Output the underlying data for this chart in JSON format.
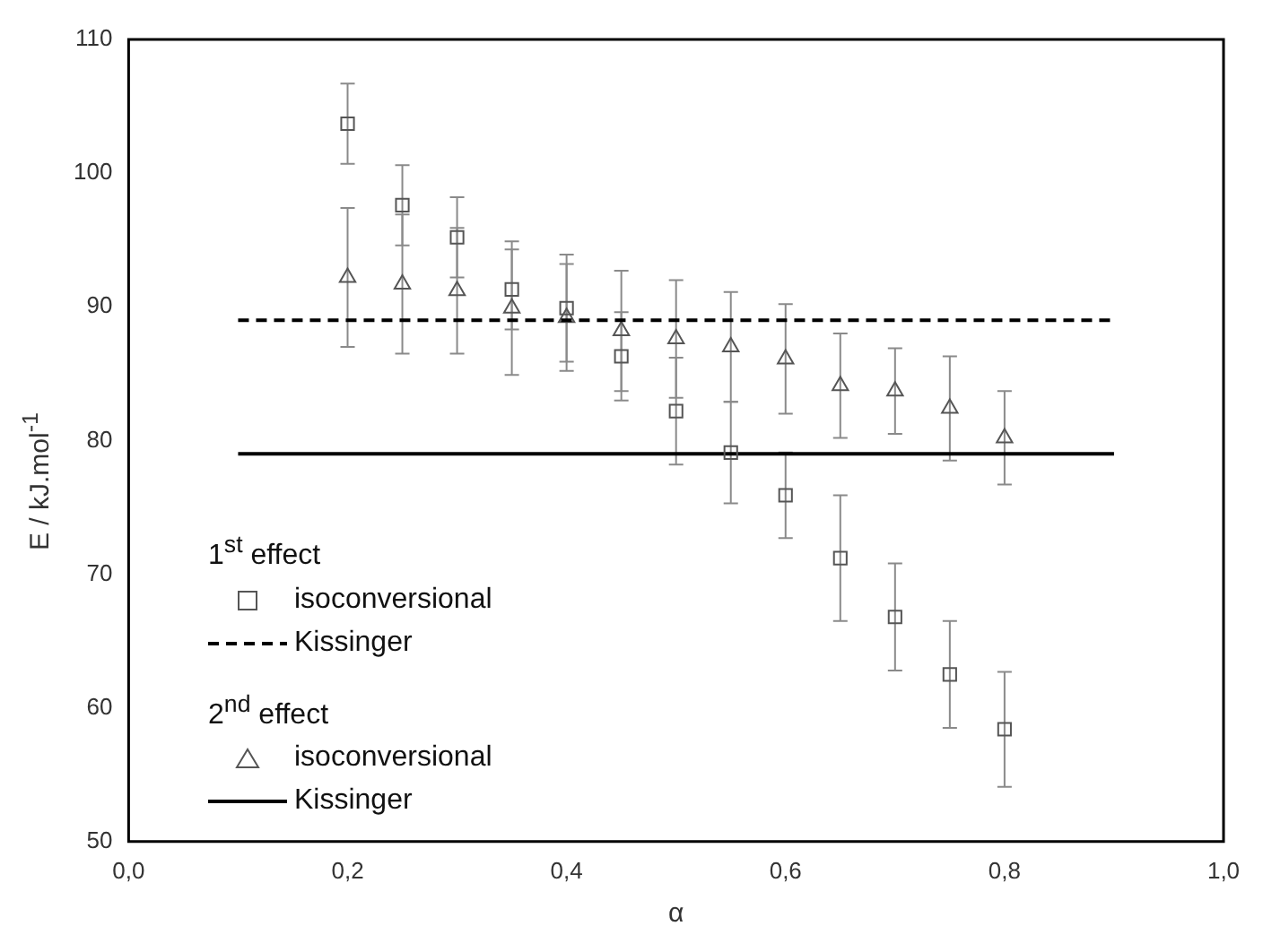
{
  "chart_data": {
    "type": "scatter",
    "xlabel": "α",
    "ylabel": "E / kJ.mol$^{-1}$",
    "xlim": [
      0,
      1
    ],
    "ylim": [
      50,
      110
    ],
    "xticks": [
      {
        "value": 0,
        "label": "0,0"
      },
      {
        "value": 0.2,
        "label": "0,2"
      },
      {
        "value": 0.4,
        "label": "0,4"
      },
      {
        "value": 0.6,
        "label": "0,6"
      },
      {
        "value": 0.8,
        "label": "0,8"
      },
      {
        "value": 1,
        "label": "1,0"
      }
    ],
    "yticks": [
      50,
      60,
      70,
      80,
      90,
      100,
      110
    ],
    "grid": false,
    "legend": "bottom left",
    "annotations": [
      "1$^{st}$ effect",
      "2$^{nd}$ effect"
    ],
    "series": [
      {
        "name": "isoconversional",
        "marker": "square",
        "color": "#555555",
        "x": [
          0.2,
          0.25,
          0.3,
          0.35,
          0.4,
          0.45,
          0.5,
          0.55,
          0.6,
          0.65,
          0.7,
          0.75,
          0.8
        ],
        "values": [
          103.7,
          97.6,
          95.2,
          91.3,
          89.9,
          86.3,
          82.2,
          79.1,
          75.9,
          71.2,
          66.8,
          62.5,
          58.4
        ],
        "errors": [
          3,
          3,
          3,
          3,
          4,
          3.3,
          4,
          3.8,
          3.2,
          4.7,
          4,
          4,
          4.3
        ]
      },
      {
        "name": "Kissinger",
        "type": "line",
        "line_style": "dashed",
        "marker": "none",
        "color": "#000000",
        "x": [
          0.1,
          0.9
        ],
        "values": [
          89,
          89
        ]
      },
      {
        "name": "isoconversional",
        "marker": "triangle",
        "color": "#555555",
        "x": [
          0.2,
          0.25,
          0.3,
          0.35,
          0.4,
          0.45,
          0.5,
          0.55,
          0.6,
          0.65,
          0.7,
          0.75,
          0.8
        ],
        "values": [
          92.2,
          91.7,
          91.2,
          89.9,
          89.2,
          88.2,
          87.6,
          87,
          86.1,
          84.1,
          83.7,
          82.4,
          80.2
        ],
        "errors": [
          5.2,
          5.2,
          4.7,
          5,
          4,
          4.5,
          4.4,
          4.1,
          4.1,
          3.9,
          3.2,
          3.9,
          3.5
        ]
      },
      {
        "name": "Kissinger",
        "type": "line",
        "line_style": "solid",
        "marker": "none",
        "color": "#000000",
        "x": [
          0.1,
          0.9
        ],
        "values": [
          79,
          79
        ]
      }
    ]
  }
}
